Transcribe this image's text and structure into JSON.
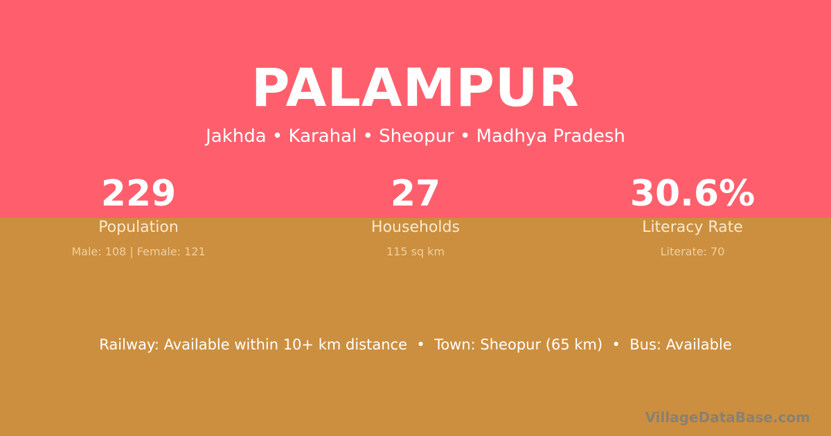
{
  "title": "PALAMPUR",
  "location": "Jakhda • Karahal • Sheopur • Madhya Pradesh",
  "stats": [
    {
      "value": "229",
      "label": "Population",
      "detail": "Male: 108 | Female: 121"
    },
    {
      "value": "27",
      "label": "Households",
      "detail": "115 sq km"
    },
    {
      "value": "30.6%",
      "label": "Literacy Rate",
      "detail": "Literate: 70"
    }
  ],
  "connectivity": "Railway: Available within 10+ km distance  •  Town: Sheopur (65 km)  •  Bus: Available",
  "brand": "VillageDataBase.com",
  "colors": {
    "top": "#ff5f6d",
    "bottom": "#cc8f3f"
  }
}
